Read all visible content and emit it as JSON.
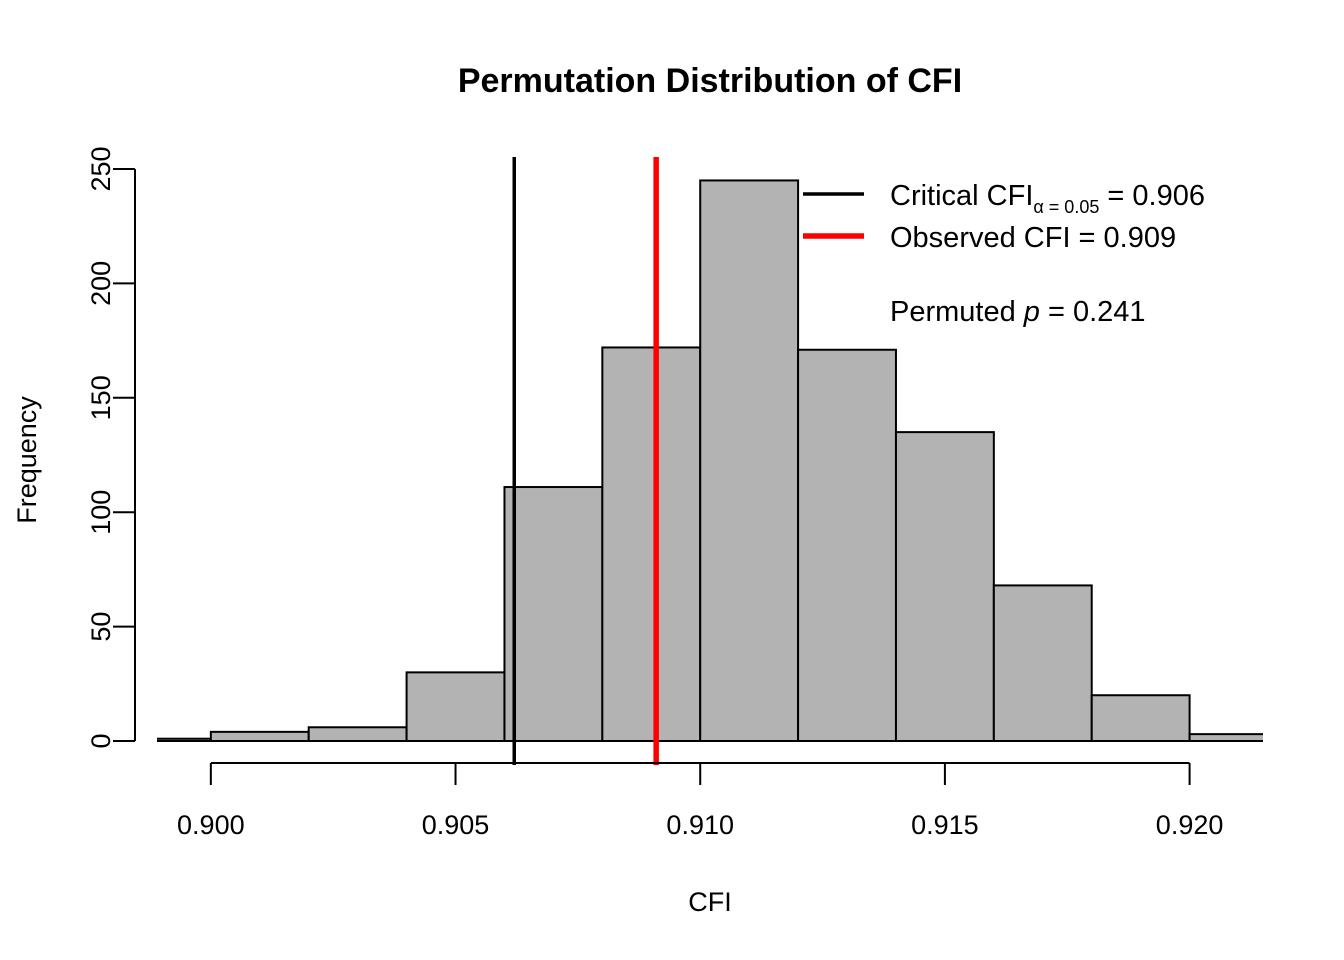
{
  "chart_data": {
    "type": "bar",
    "title": "Permutation Distribution of CFI",
    "xlabel": "CFI",
    "ylabel": "Frequency",
    "xlim": [
      0.8989,
      0.9215
    ],
    "ylim": [
      0,
      250
    ],
    "x_ticks": [
      0.9,
      0.905,
      0.91,
      0.915,
      0.92
    ],
    "x_tick_labels": [
      "0.900",
      "0.905",
      "0.910",
      "0.915",
      "0.920"
    ],
    "y_ticks": [
      0,
      50,
      100,
      150,
      200,
      250
    ],
    "y_tick_labels": [
      "0",
      "50",
      "100",
      "150",
      "200",
      "250"
    ],
    "bins": [
      {
        "start": 0.898,
        "end": 0.9,
        "count": 1
      },
      {
        "start": 0.9,
        "end": 0.902,
        "count": 4
      },
      {
        "start": 0.902,
        "end": 0.904,
        "count": 6
      },
      {
        "start": 0.904,
        "end": 0.906,
        "count": 30
      },
      {
        "start": 0.906,
        "end": 0.908,
        "count": 111
      },
      {
        "start": 0.908,
        "end": 0.91,
        "count": 172
      },
      {
        "start": 0.91,
        "end": 0.912,
        "count": 245
      },
      {
        "start": 0.912,
        "end": 0.914,
        "count": 171
      },
      {
        "start": 0.914,
        "end": 0.916,
        "count": 135
      },
      {
        "start": 0.916,
        "end": 0.918,
        "count": 68
      },
      {
        "start": 0.918,
        "end": 0.92,
        "count": 20
      },
      {
        "start": 0.92,
        "end": 0.922,
        "count": 3
      }
    ],
    "reference_lines": [
      {
        "value": 0.9062,
        "color": "#000000",
        "label": "Critical CFI"
      },
      {
        "value": 0.9091,
        "color": "#ff0000",
        "label": "Observed CFI"
      }
    ],
    "legend": {
      "position": "top-right",
      "entries": [
        {
          "color": "#000000",
          "main": "Critical CFI",
          "subscript": "α  = 0.05",
          "suffix": " = 0.906"
        },
        {
          "color": "#ff0000",
          "main": "Observed CFI = 0.909",
          "subscript": "",
          "suffix": ""
        }
      ],
      "note_prefix": "Permuted ",
      "note_italic": "p",
      "note_suffix": " = 0.241"
    },
    "bar_color": "#b3b3b3",
    "grid": false
  }
}
